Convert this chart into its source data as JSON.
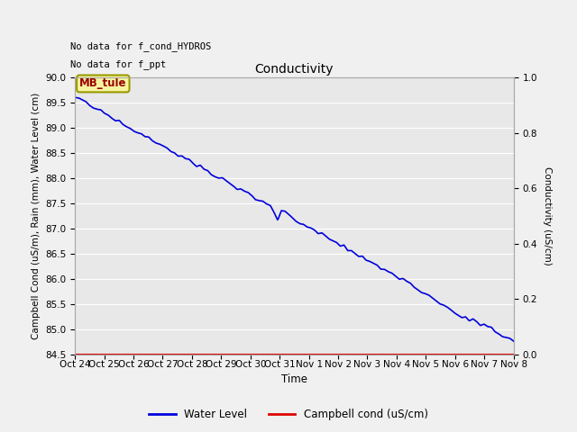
{
  "title": "Conductivity",
  "xlabel": "Time",
  "ylabel_left": "Campbell Cond (uS/m), Rain (mm), Water Level (cm)",
  "ylabel_right": "Conductivity (uS/cm)",
  "no_data_text_1": "No data for f_cond_HYDROS",
  "no_data_text_2": "No data for f_ppt",
  "annotation_box": "MB_tule",
  "ylim_left": [
    84.5,
    90.0
  ],
  "ylim_right": [
    0.0,
    1.0
  ],
  "yticks_left": [
    84.5,
    85.0,
    85.5,
    86.0,
    86.5,
    87.0,
    87.5,
    88.0,
    88.5,
    89.0,
    89.5,
    90.0
  ],
  "yticks_right": [
    0.0,
    0.2,
    0.4,
    0.6,
    0.8,
    1.0
  ],
  "xtick_labels": [
    "Oct 24",
    "Oct 25",
    "Oct 26",
    "Oct 27",
    "Oct 28",
    "Oct 29",
    "Oct 30",
    "Oct 31",
    "Nov 1",
    "Nov 2",
    "Nov 3",
    "Nov 4",
    "Nov 5",
    "Nov 6",
    "Nov 7",
    "Nov 8"
  ],
  "line_color_water": "#0000dd",
  "line_color_campbell": "#dd0000",
  "legend_labels": [
    "Water Level",
    "Campbell cond (uS/cm)"
  ],
  "bg_color": "#f0f0f0",
  "plot_bg_color": "#e8e8e8",
  "grid_color": "#ffffff"
}
